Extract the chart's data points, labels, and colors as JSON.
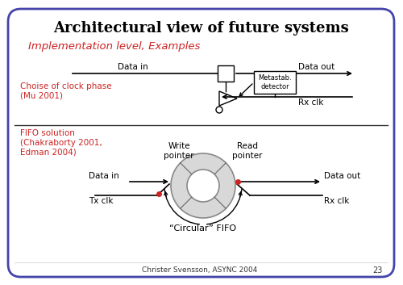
{
  "title": "Architectural view of future systems",
  "subtitle": "Implementation level, Examples",
  "bg_color": "#ffffff",
  "border_color": "#4444aa",
  "title_color": "#000000",
  "subtitle_color": "#cc2222",
  "red_color": "#cc2222",
  "footer_text": "Christer Svensson, ASYNC 2004",
  "page_num": "23",
  "section1_label": "Choise of clock phase\n(Mu 2001)",
  "section2_label": "FIFO solution\n(Chakraborty 2001,\nEdman 2004)",
  "circular_fifo_label": "“Circular” FIFO",
  "write_pointer": "Write\npointer",
  "read_pointer": "Read\npointer",
  "data_in": "Data in",
  "data_out": "Data out",
  "tx_clk": "Tx clk",
  "rx_clk": "Rx clk"
}
